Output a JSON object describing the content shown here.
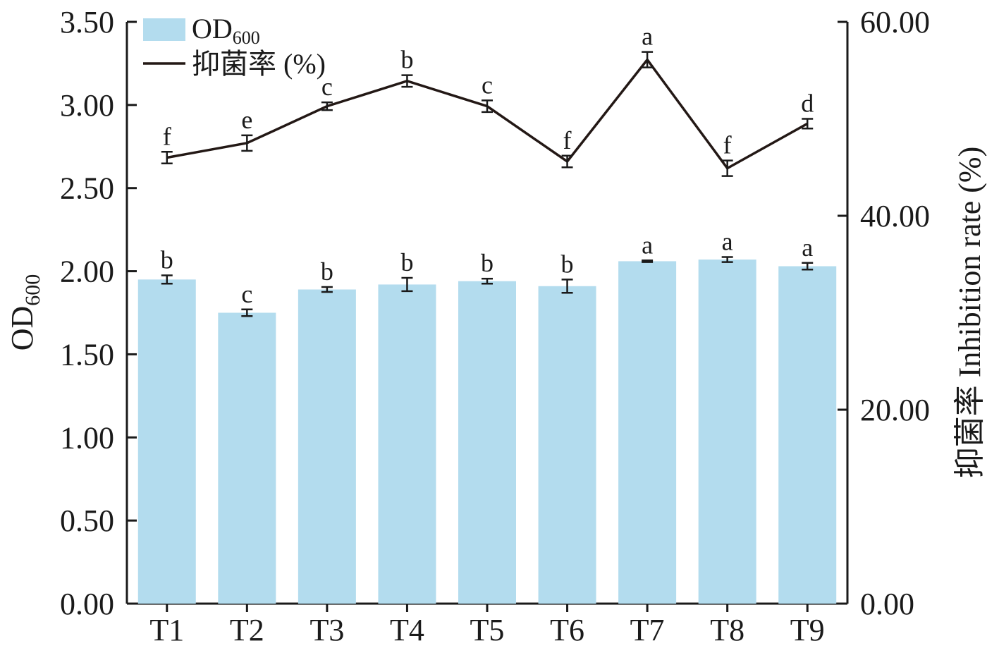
{
  "chart_data": {
    "type": "bar+line",
    "categories": [
      "T1",
      "T2",
      "T3",
      "T4",
      "T5",
      "T6",
      "T7",
      "T8",
      "T9"
    ],
    "left_axis": {
      "label_main": "OD",
      "label_sub": "600",
      "ylim": [
        0,
        3.5
      ],
      "ticks": [
        "0.00",
        "0.50",
        "1.00",
        "1.50",
        "2.00",
        "2.50",
        "3.00",
        "3.50"
      ]
    },
    "right_axis": {
      "label": "抑菌率 Inhibition rate (%)",
      "ylim": [
        0,
        60
      ],
      "ticks": [
        "0.00",
        "20.00",
        "40.00",
        "60.00"
      ]
    },
    "series": [
      {
        "name": "OD",
        "name_sub": "600",
        "type": "bar",
        "axis": "left",
        "color": "#b3dcee",
        "values": [
          1.95,
          1.75,
          1.89,
          1.92,
          1.94,
          1.91,
          2.06,
          2.07,
          2.03
        ],
        "errors": [
          0.025,
          0.02,
          0.015,
          0.04,
          0.015,
          0.04,
          0.005,
          0.015,
          0.02
        ],
        "significance": [
          "b",
          "c",
          "b",
          "b",
          "b",
          "b",
          "a",
          "a",
          "a"
        ]
      },
      {
        "name": "抑菌率 (%)",
        "type": "line",
        "axis": "right",
        "color": "#231815",
        "values": [
          46.0,
          47.5,
          51.3,
          53.9,
          51.3,
          45.6,
          56.1,
          44.9,
          49.5
        ],
        "errors": [
          0.6,
          0.8,
          0.4,
          0.6,
          0.6,
          0.6,
          0.8,
          0.8,
          0.5
        ],
        "significance": [
          "f",
          "e",
          "c",
          "b",
          "c",
          "f",
          "a",
          "f",
          "d"
        ]
      }
    ]
  }
}
